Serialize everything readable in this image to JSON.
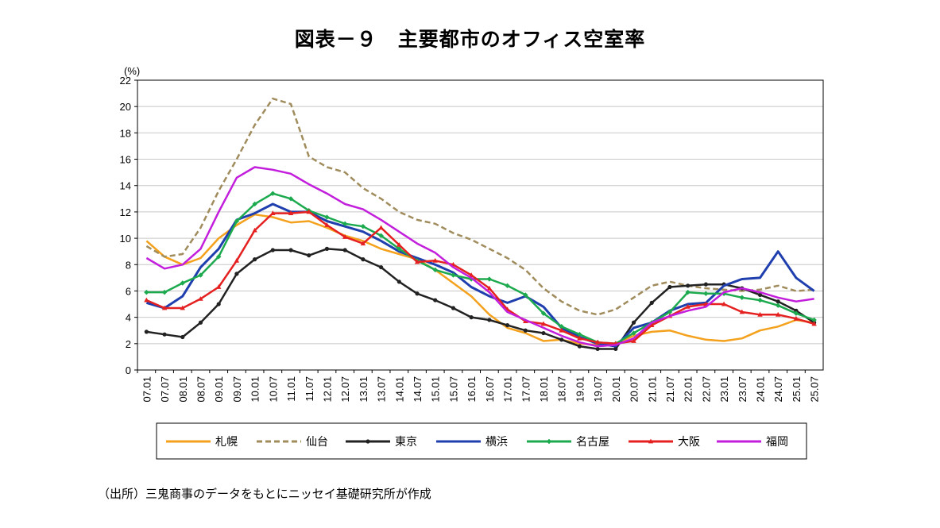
{
  "chart_data": {
    "type": "line",
    "title": "図表－９　主要都市のオフィス空室率",
    "ylabel": "(%)",
    "xlabel": "",
    "ylim": [
      0,
      22
    ],
    "yticks": [
      "0",
      "2",
      "4",
      "6",
      "8",
      "10",
      "12",
      "14",
      "16",
      "18",
      "20",
      "22"
    ],
    "grid": true,
    "legend_position": "bottom",
    "source": "（出所）三鬼商事のデータをもとにニッセイ基礎研究所が作成",
    "x": [
      "07.01",
      "07.07",
      "08.01",
      "08.07",
      "09.01",
      "09.07",
      "10.01",
      "10.07",
      "11.01",
      "11.07",
      "12.01",
      "12.07",
      "13.01",
      "13.07",
      "14.01",
      "14.07",
      "15.01",
      "15.07",
      "16.01",
      "16.07",
      "17.01",
      "17.07",
      "18.01",
      "18.07",
      "19.01",
      "19.07",
      "20.01",
      "20.07",
      "21.01",
      "21.07",
      "22.01",
      "22.07",
      "23.01",
      "23.07",
      "24.01",
      "24.07",
      "25.01",
      "25.07"
    ],
    "series": [
      {
        "name": "札幌",
        "color": "#F4A11D",
        "dash": false,
        "marker": "none",
        "values": [
          9.8,
          8.6,
          8.0,
          8.5,
          10.0,
          11.0,
          11.8,
          11.6,
          11.2,
          11.3,
          10.8,
          10.2,
          9.8,
          9.2,
          8.8,
          8.4,
          7.6,
          6.6,
          5.6,
          4.2,
          3.2,
          2.8,
          2.2,
          2.3,
          2.0,
          1.9,
          2.0,
          2.6,
          2.9,
          3.0,
          2.6,
          2.3,
          2.2,
          2.4,
          3.0,
          3.3,
          3.8,
          3.6
        ]
      },
      {
        "name": "仙台",
        "color": "#A08C5C",
        "dash": true,
        "marker": "none",
        "values": [
          9.4,
          8.6,
          8.8,
          10.8,
          13.6,
          16.0,
          18.6,
          20.6,
          20.2,
          16.2,
          15.4,
          15.0,
          13.8,
          13.0,
          12.0,
          11.4,
          11.1,
          10.4,
          9.9,
          9.2,
          8.5,
          7.6,
          6.2,
          5.2,
          4.5,
          4.2,
          4.6,
          5.5,
          6.4,
          6.7,
          6.4,
          6.2,
          6.1,
          6.0,
          6.1,
          6.4,
          6.0,
          6.1
        ]
      },
      {
        "name": "東京",
        "color": "#222222",
        "dash": false,
        "marker": "circle",
        "values": [
          2.9,
          2.7,
          2.5,
          3.6,
          5.0,
          7.3,
          8.4,
          9.1,
          9.1,
          8.7,
          9.2,
          9.1,
          8.4,
          7.8,
          6.7,
          5.8,
          5.3,
          4.7,
          4.0,
          3.8,
          3.4,
          3.0,
          2.8,
          2.3,
          1.8,
          1.6,
          1.6,
          3.6,
          5.1,
          6.3,
          6.4,
          6.5,
          6.5,
          6.2,
          5.7,
          5.2,
          4.5,
          3.6
        ]
      },
      {
        "name": "横浜",
        "color": "#1F3FAE",
        "dash": false,
        "marker": "none",
        "values": [
          5.1,
          4.7,
          5.6,
          7.8,
          9.2,
          11.4,
          11.9,
          12.6,
          12.0,
          12.0,
          11.3,
          10.9,
          10.5,
          9.8,
          9.0,
          8.5,
          8.0,
          7.4,
          6.3,
          5.6,
          5.1,
          5.6,
          4.8,
          3.2,
          2.5,
          2.0,
          1.8,
          3.2,
          3.6,
          4.5,
          5.0,
          5.1,
          6.4,
          6.9,
          7.0,
          9.0,
          7.0,
          6.0
        ]
      },
      {
        "name": "名古屋",
        "color": "#1DAA4F",
        "dash": false,
        "marker": "diamond",
        "values": [
          5.9,
          5.9,
          6.6,
          7.2,
          8.6,
          11.3,
          12.6,
          13.4,
          13.0,
          12.1,
          11.6,
          11.1,
          10.9,
          10.2,
          9.2,
          8.3,
          7.6,
          7.2,
          6.9,
          6.9,
          6.4,
          5.7,
          4.3,
          3.3,
          2.7,
          2.1,
          2.0,
          2.8,
          3.6,
          4.4,
          5.9,
          5.8,
          5.8,
          5.5,
          5.3,
          4.9,
          4.3,
          3.8
        ]
      },
      {
        "name": "大阪",
        "color": "#E52020",
        "dash": false,
        "marker": "triangle",
        "values": [
          5.3,
          4.7,
          4.7,
          5.4,
          6.3,
          8.3,
          10.6,
          11.9,
          11.9,
          12.0,
          11.0,
          10.1,
          9.6,
          10.8,
          9.5,
          8.2,
          8.3,
          8.0,
          7.2,
          6.2,
          4.6,
          3.7,
          3.5,
          3.0,
          2.4,
          2.1,
          2.0,
          2.2,
          3.4,
          4.1,
          4.8,
          5.0,
          5.0,
          4.4,
          4.2,
          4.2,
          3.9,
          3.5
        ]
      },
      {
        "name": "福岡",
        "color": "#C21EDC",
        "dash": false,
        "marker": "none",
        "values": [
          8.5,
          7.7,
          8.0,
          9.2,
          12.0,
          14.6,
          15.4,
          15.2,
          14.9,
          14.1,
          13.4,
          12.6,
          12.2,
          11.4,
          10.5,
          9.6,
          8.9,
          7.8,
          7.0,
          5.9,
          4.4,
          3.8,
          3.2,
          2.6,
          2.1,
          1.8,
          1.9,
          2.4,
          3.6,
          4.1,
          4.5,
          4.8,
          5.9,
          6.2,
          5.9,
          5.5,
          5.2,
          5.4
        ]
      }
    ]
  }
}
